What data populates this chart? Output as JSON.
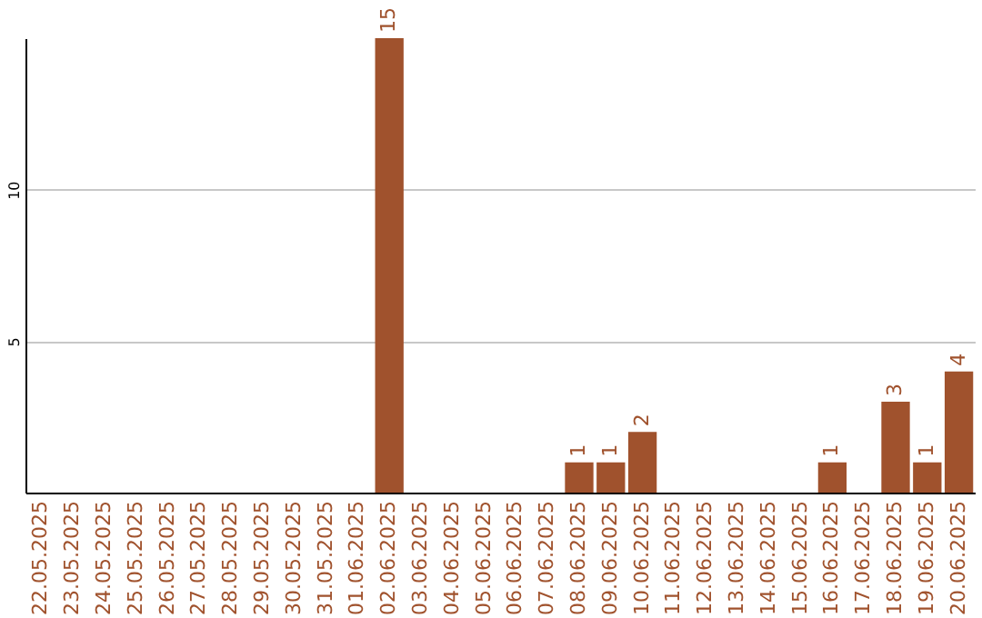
{
  "chart_data": {
    "type": "bar",
    "categories": [
      "22.05.2025",
      "23.05.2025",
      "24.05.2025",
      "25.05.2025",
      "26.05.2025",
      "27.05.2025",
      "28.05.2025",
      "29.05.2025",
      "30.05.2025",
      "31.05.2025",
      "01.06.2025",
      "02.06.2025",
      "03.06.2025",
      "04.06.2025",
      "05.06.2025",
      "06.06.2025",
      "07.06.2025",
      "08.06.2025",
      "09.06.2025",
      "10.06.2025",
      "11.06.2025",
      "12.06.2025",
      "13.06.2025",
      "14.06.2025",
      "15.06.2025",
      "16.06.2025",
      "17.06.2025",
      "18.06.2025",
      "19.06.2025",
      "20.06.2025"
    ],
    "values": [
      0,
      0,
      0,
      0,
      0,
      0,
      0,
      0,
      0,
      0,
      0,
      15,
      0,
      0,
      0,
      0,
      0,
      1,
      1,
      2,
      0,
      0,
      0,
      0,
      0,
      1,
      0,
      3,
      1,
      4
    ],
    "value_labels": [
      null,
      null,
      null,
      null,
      null,
      null,
      null,
      null,
      null,
      null,
      null,
      "15",
      null,
      null,
      null,
      null,
      null,
      "1",
      "1",
      "2",
      null,
      null,
      null,
      null,
      null,
      "1",
      null,
      "3",
      "1",
      "4"
    ],
    "color": "#a0522d",
    "ylim": [
      0,
      15
    ],
    "yticks": [
      5,
      10
    ],
    "grid": "y"
  }
}
